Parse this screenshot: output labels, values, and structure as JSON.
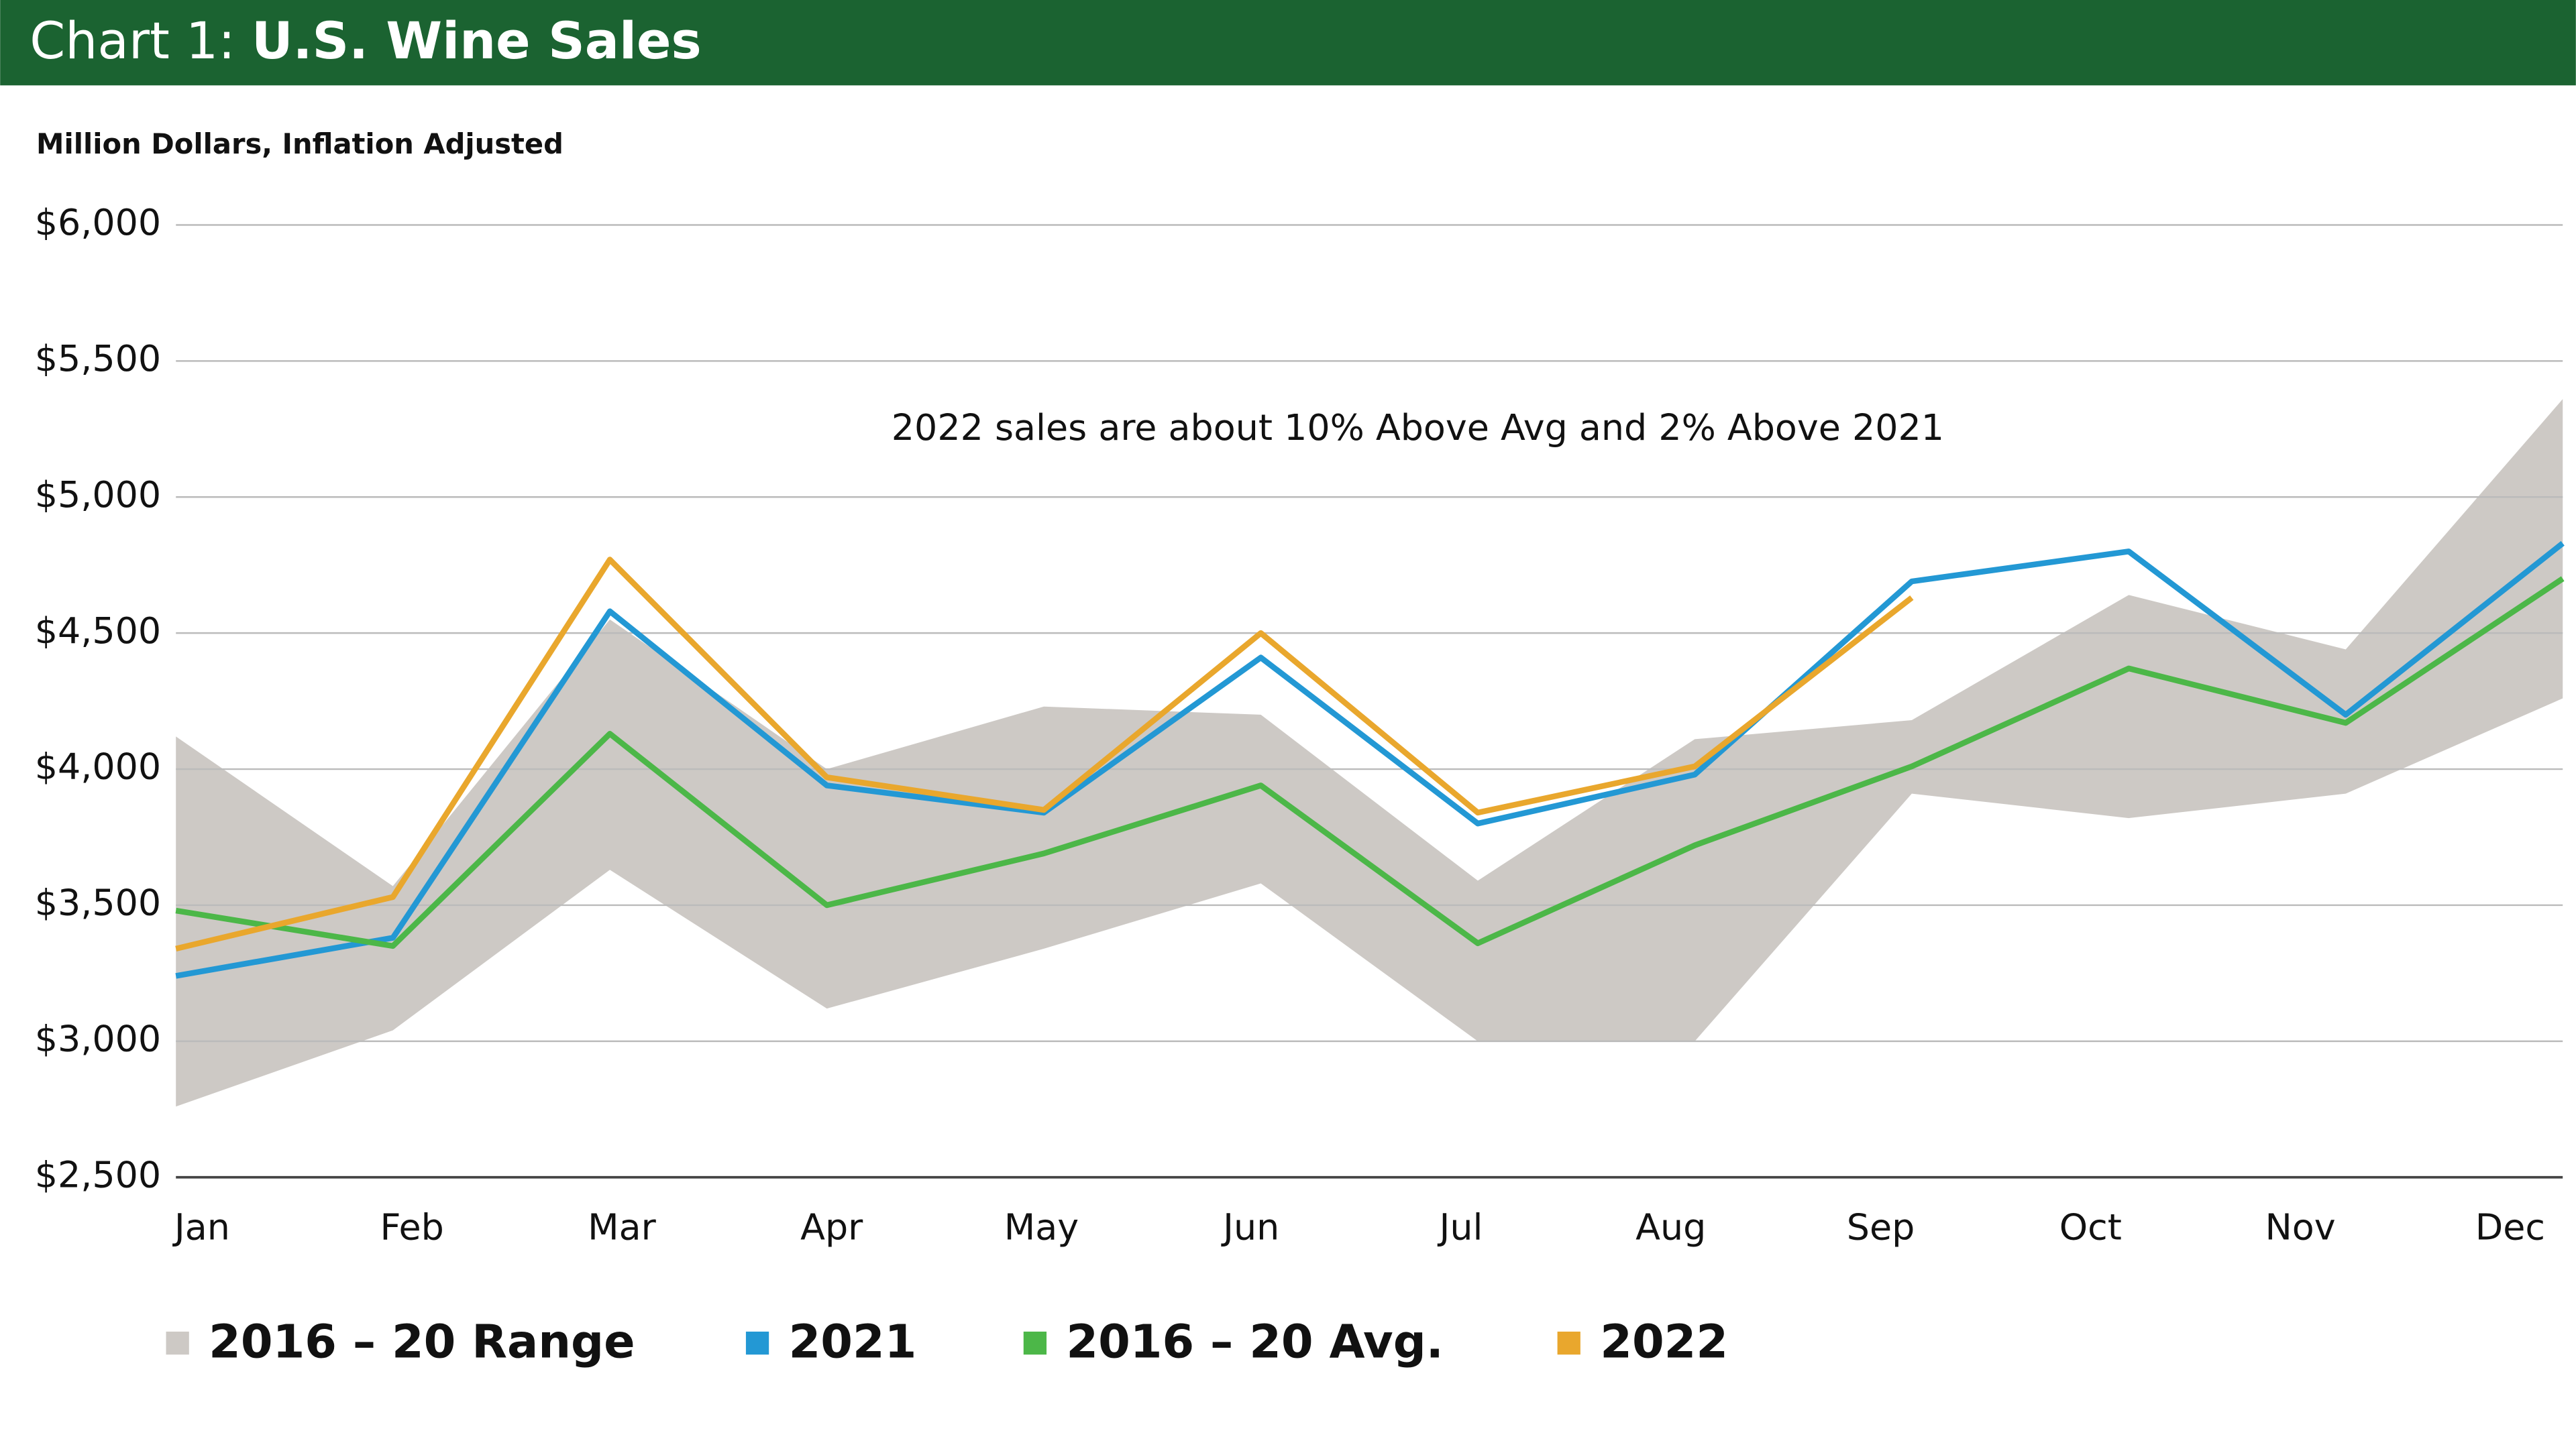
{
  "chart_data": {
    "type": "line",
    "title_label": "Chart 1:",
    "title": "U.S. Wine Sales",
    "ylabel": "Million Dollars, Inflation Adjusted",
    "annotation": "2022 sales are about 10% Above Avg and 2% Above 2021",
    "categories": [
      "Jan",
      "Feb",
      "Mar",
      "Apr",
      "May",
      "Jun",
      "Jul",
      "Aug",
      "Sep",
      "Oct",
      "Nov",
      "Dec"
    ],
    "ylim": [
      2500,
      6000
    ],
    "yticks": [
      {
        "value": 2500,
        "label": "$2,500"
      },
      {
        "value": 3000,
        "label": "$3,000"
      },
      {
        "value": 3500,
        "label": "$3,500"
      },
      {
        "value": 4000,
        "label": "$4,000"
      },
      {
        "value": 4500,
        "label": "$4,500"
      },
      {
        "value": 5000,
        "label": "$5,000"
      },
      {
        "value": 5500,
        "label": "$5,500"
      },
      {
        "value": 6000,
        "label": "$6,000"
      }
    ],
    "grid": true,
    "range": {
      "name": "2016 – 20 Range",
      "color": "#cdc9c5",
      "high": [
        4120,
        3570,
        4550,
        4000,
        4230,
        4200,
        3590,
        4110,
        4180,
        4640,
        4440,
        5360
      ],
      "low": [
        2760,
        3040,
        3630,
        3120,
        3340,
        3580,
        3000,
        3000,
        3910,
        3820,
        3910,
        4260
      ]
    },
    "series": [
      {
        "name": "2021",
        "color": "#2398d4",
        "values": [
          3240,
          3380,
          4580,
          3940,
          3840,
          4410,
          3800,
          3980,
          4690,
          4800,
          4200,
          4830
        ]
      },
      {
        "name": "2016 – 20 Avg.",
        "color": "#4cb748",
        "values": [
          3480,
          3350,
          4130,
          3500,
          3690,
          3940,
          3360,
          3720,
          4010,
          4370,
          4170,
          4700
        ]
      },
      {
        "name": "2022",
        "color": "#e9a72d",
        "values": [
          3340,
          3530,
          4770,
          3970,
          3850,
          4500,
          3840,
          4010,
          4630,
          null,
          null,
          null
        ]
      }
    ]
  }
}
